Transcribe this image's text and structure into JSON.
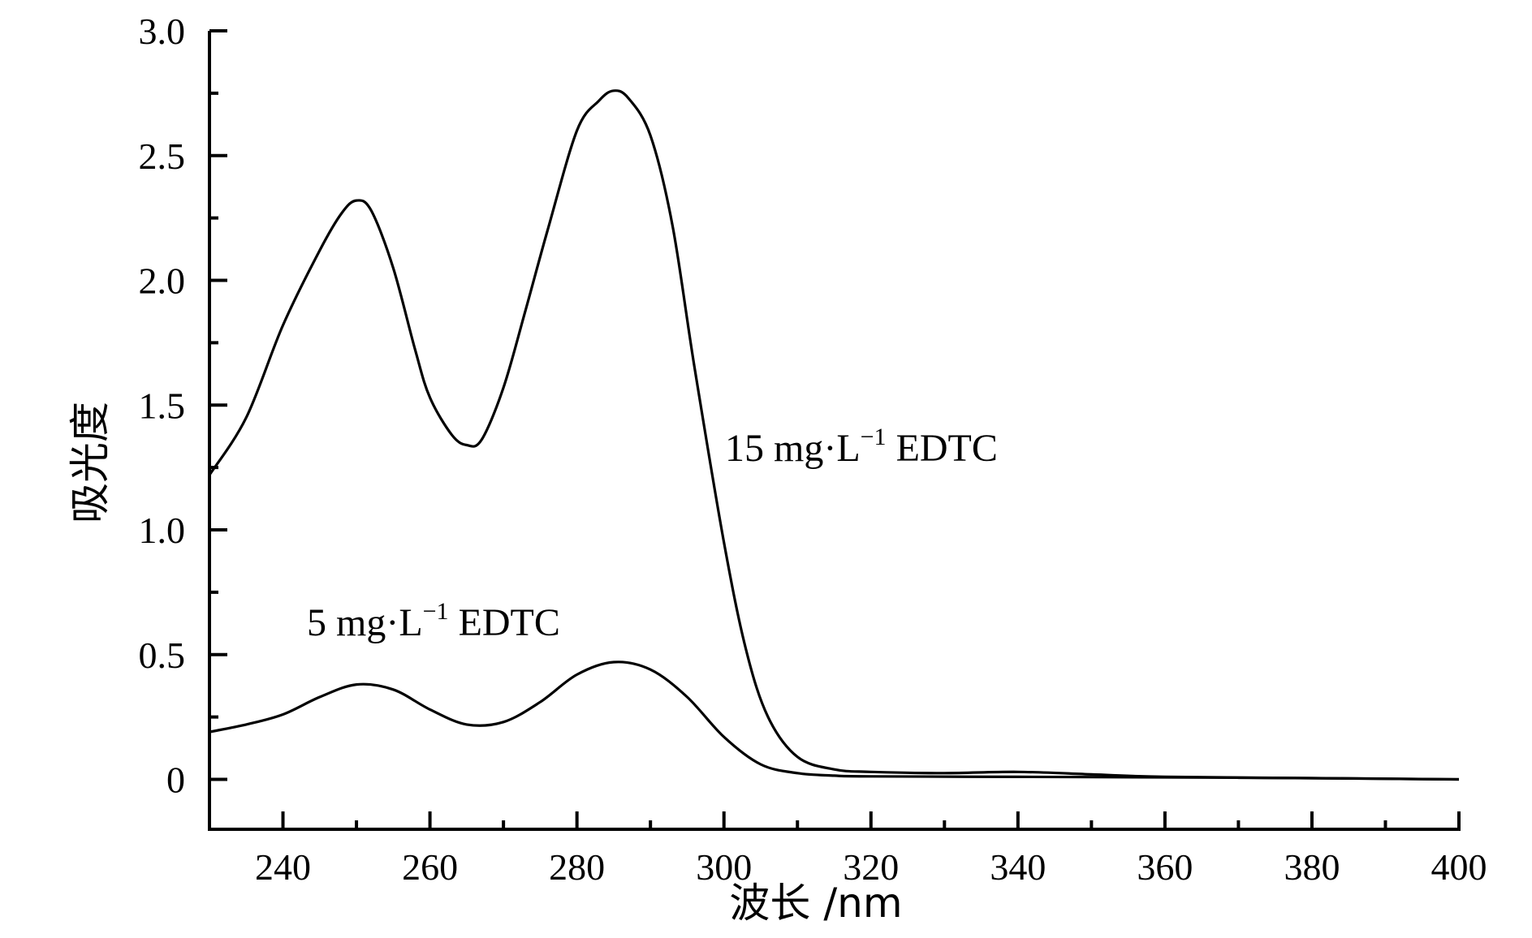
{
  "chart_data": {
    "type": "line",
    "title": "",
    "xlabel": "波长 /nm",
    "ylabel": "吸光度",
    "xlim": [
      230,
      400
    ],
    "ylim": [
      -0.2,
      3.0
    ],
    "x_ticks": [
      240,
      260,
      280,
      300,
      320,
      340,
      360,
      380,
      400
    ],
    "x_tick_labels": [
      "240",
      "260",
      "280",
      "300",
      "320",
      "340",
      "360",
      "380",
      "400"
    ],
    "y_ticks": [
      0,
      0.5,
      1.0,
      1.5,
      2.0,
      2.5,
      3.0
    ],
    "y_tick_labels": [
      "0",
      "0.5",
      "1.0",
      "1.5",
      "2.0",
      "2.5",
      "3.0"
    ],
    "grid": false,
    "legend": "none",
    "series": [
      {
        "name": "15 mg·L⁻¹ EDTC",
        "label_main": "15 mg·L",
        "label_sup": "−1",
        "label_tail": " EDTC",
        "x": [
          230,
          235,
          240,
          245,
          248,
          250,
          252,
          255,
          258,
          260,
          263,
          265,
          267,
          270,
          273,
          276,
          280,
          283,
          285,
          287,
          290,
          293,
          296,
          300,
          303,
          306,
          310,
          315,
          320,
          330,
          340,
          350,
          360,
          380,
          400
        ],
        "y": [
          1.22,
          1.45,
          1.82,
          2.12,
          2.27,
          2.32,
          2.28,
          2.05,
          1.72,
          1.53,
          1.38,
          1.34,
          1.36,
          1.57,
          1.88,
          2.2,
          2.6,
          2.72,
          2.76,
          2.73,
          2.58,
          2.22,
          1.65,
          0.95,
          0.52,
          0.25,
          0.09,
          0.04,
          0.03,
          0.025,
          0.03,
          0.02,
          0.01,
          0.005,
          0.0
        ]
      },
      {
        "name": "5 mg·L⁻¹ EDTC",
        "label_main": "5 mg·L",
        "label_sup": "−1",
        "label_tail": " EDTC",
        "x": [
          230,
          235,
          240,
          245,
          250,
          255,
          260,
          265,
          270,
          275,
          280,
          285,
          290,
          295,
          300,
          305,
          310,
          315,
          320,
          340,
          360,
          380,
          400
        ],
        "y": [
          0.19,
          0.22,
          0.26,
          0.33,
          0.38,
          0.36,
          0.28,
          0.22,
          0.23,
          0.31,
          0.42,
          0.47,
          0.44,
          0.33,
          0.17,
          0.06,
          0.025,
          0.015,
          0.012,
          0.01,
          0.008,
          0.005,
          0.0
        ]
      }
    ]
  }
}
